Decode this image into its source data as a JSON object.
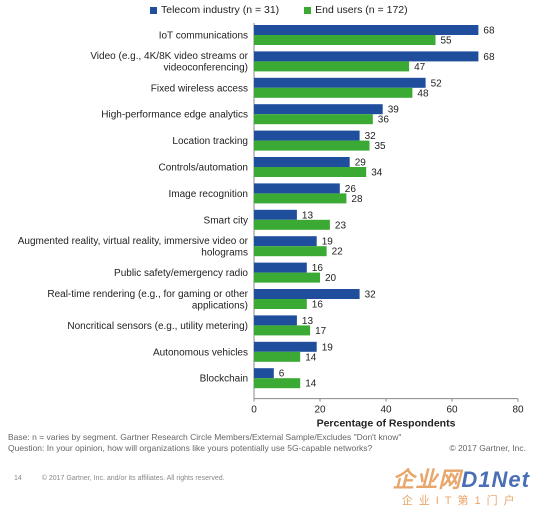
{
  "chart_data": {
    "type": "bar",
    "orientation": "horizontal",
    "categories": [
      "IoT communications",
      [
        "Video (e.g., 4K/8K video streams or",
        "videoconferencing)"
      ],
      "Fixed wireless access",
      "High-performance edge analytics",
      "Location tracking",
      "Controls/automation",
      "Image recognition",
      "Smart city",
      [
        "Augmented reality, virtual reality, immersive video or",
        "holograms"
      ],
      "Public safety/emergency radio",
      [
        "Real-time rendering (e.g., for gaming or other",
        "applications)"
      ],
      "Noncritical sensors (e.g., utility metering)",
      "Autonomous vehicles",
      "Blockchain"
    ],
    "series": [
      {
        "name": "Telecom industry (n = 31)",
        "color": "#1f4e9c",
        "values": [
          68,
          68,
          52,
          39,
          32,
          29,
          26,
          13,
          19,
          16,
          32,
          13,
          19,
          6
        ]
      },
      {
        "name": "End users (n = 172)",
        "color": "#3aaa35",
        "values": [
          55,
          47,
          48,
          36,
          35,
          34,
          28,
          23,
          22,
          20,
          16,
          17,
          14,
          14
        ]
      }
    ],
    "xlabel": "Percentage of Respondents",
    "xlim": [
      0,
      80
    ],
    "xticks": [
      0,
      20,
      40,
      60,
      80
    ],
    "legend_position": "top",
    "grid": false
  },
  "footnote": {
    "base": "Base: n = varies by segment. Gartner Research Circle Members/External  Sample/Excludes  \"Don't know\"",
    "question": "Question:  In your opinion, how will organizations like yours potentially  use 5G-capable networks?",
    "copyright_right": "© 2017 Gartner, Inc."
  },
  "page_footer": {
    "page_number": "14",
    "copyright": "© 2017 Gartner, Inc. and/or its affiliates. All rights reserved."
  },
  "watermark": {
    "main_orange": "企业网",
    "main_blue": "D1Net",
    "sub": "企业IT第1门户"
  }
}
